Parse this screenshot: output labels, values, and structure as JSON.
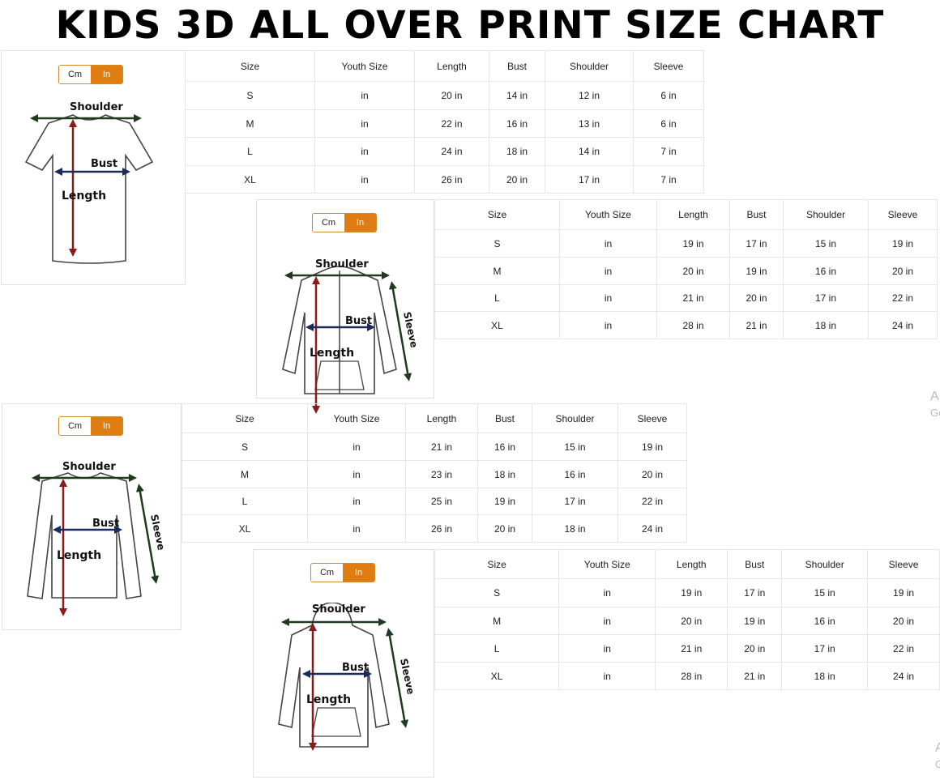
{
  "title": "KIDS 3D ALL OVER PRINT SIZE CHART",
  "unit_toggle": {
    "cm_label": "Cm",
    "in_label": "In",
    "selected": "In",
    "accent_color": "#e07d12"
  },
  "columns": [
    "Size",
    "Youth Size",
    "Length",
    "Bust",
    "Shoulder",
    "Sleeve"
  ],
  "charts": [
    {
      "garment": "t-shirt",
      "labels": {
        "shoulder": "Shoulder",
        "bust": "Bust",
        "length": "Length"
      },
      "rows": [
        [
          "S",
          "in",
          "20 in",
          "14 in",
          "12 in",
          "6 in"
        ],
        [
          "M",
          "in",
          "22 in",
          "16 in",
          "13 in",
          "6 in"
        ],
        [
          "L",
          "in",
          "24 in",
          "18 in",
          "14 in",
          "7 in"
        ],
        [
          "XL",
          "in",
          "26 in",
          "20 in",
          "17 in",
          "7 in"
        ]
      ]
    },
    {
      "garment": "zip-hoodie",
      "labels": {
        "shoulder": "Shoulder",
        "bust": "Bust",
        "length": "Length",
        "sleeve": "Sleeve"
      },
      "rows": [
        [
          "S",
          "in",
          "19 in",
          "17 in",
          "15 in",
          "19 in"
        ],
        [
          "M",
          "in",
          "20 in",
          "19 in",
          "16 in",
          "20 in"
        ],
        [
          "L",
          "in",
          "21 in",
          "20 in",
          "17 in",
          "22 in"
        ],
        [
          "XL",
          "in",
          "28 in",
          "21 in",
          "18 in",
          "24 in"
        ]
      ]
    },
    {
      "garment": "long-sleeve-shirt",
      "labels": {
        "shoulder": "Shoulder",
        "bust": "Bust",
        "length": "Length",
        "sleeve": "Sleeve"
      },
      "rows": [
        [
          "S",
          "in",
          "21 in",
          "16 in",
          "15 in",
          "19 in"
        ],
        [
          "M",
          "in",
          "23 in",
          "18 in",
          "16 in",
          "20 in"
        ],
        [
          "L",
          "in",
          "25 in",
          "19 in",
          "17 in",
          "22 in"
        ],
        [
          "XL",
          "in",
          "26 in",
          "20 in",
          "18 in",
          "24 in"
        ]
      ]
    },
    {
      "garment": "pullover-hoodie",
      "labels": {
        "shoulder": "Shoulder",
        "bust": "Bust",
        "length": "Length",
        "sleeve": "Sleeve"
      },
      "rows": [
        [
          "S",
          "in",
          "19 in",
          "17 in",
          "15 in",
          "19 in"
        ],
        [
          "M",
          "in",
          "20 in",
          "19 in",
          "16 in",
          "20 in"
        ],
        [
          "L",
          "in",
          "21 in",
          "20 in",
          "17 in",
          "22 in"
        ],
        [
          "XL",
          "in",
          "28 in",
          "21 in",
          "18 in",
          "24 in"
        ]
      ]
    }
  ],
  "side_fragments": [
    {
      "line1": "A",
      "line2": "Go"
    },
    {
      "line1": "A",
      "line2": "G"
    }
  ]
}
